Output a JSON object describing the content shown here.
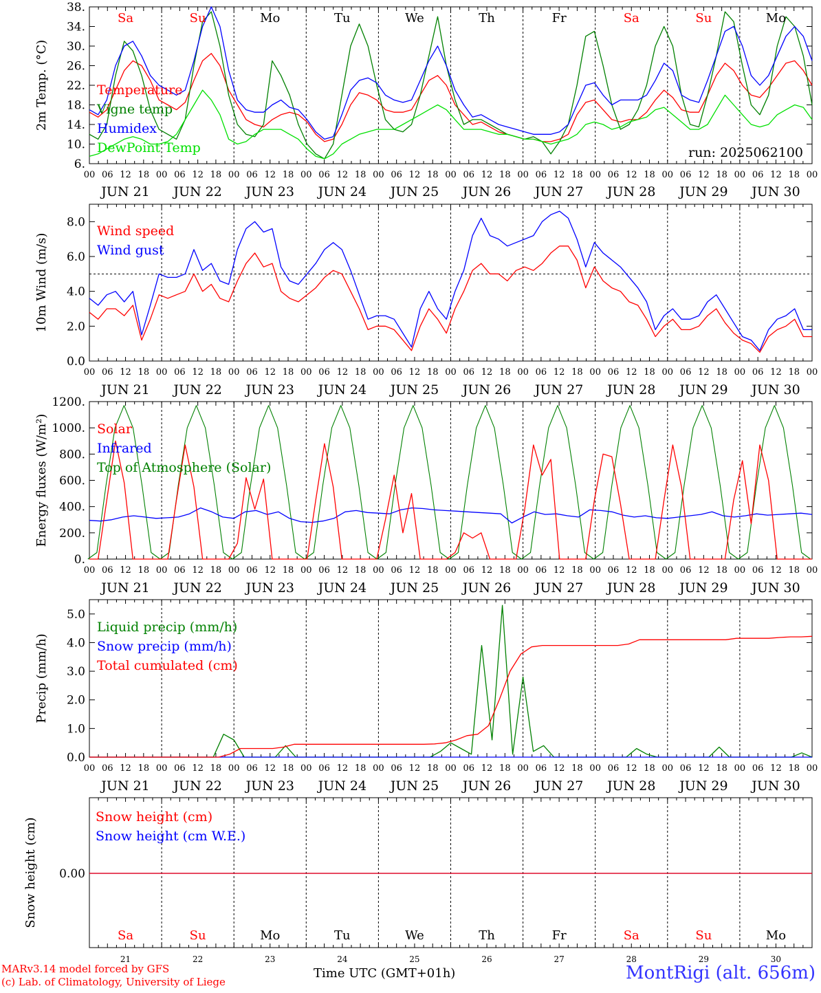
{
  "run_label": "run: 2025062100",
  "days": {
    "dow": [
      "Sa",
      "Su",
      "Mo",
      "Tu",
      "We",
      "Th",
      "Fr",
      "Sa",
      "Su",
      "Mo"
    ],
    "weekend": [
      true,
      true,
      false,
      false,
      false,
      false,
      false,
      true,
      true,
      false
    ],
    "dates": [
      "JUN 21",
      "JUN 22",
      "JUN 23",
      "JUN 24",
      "JUN 25",
      "JUN 26",
      "JUN 27",
      "JUN 28",
      "JUN 29",
      "JUN 30"
    ],
    "day_numbers": [
      "21",
      "22",
      "23",
      "24",
      "25",
      "26",
      "27",
      "28",
      "29",
      "30"
    ],
    "hour_labels": [
      "00",
      "06",
      "12",
      "18"
    ],
    "final_hour_label": "00"
  },
  "footer": {
    "model_line": "MARv3.14 model forced by GFS",
    "copyright_line": "(c) Lab. of Climatology, University of Liege",
    "x_axis_title": "Time UTC (GMT+01h)",
    "month": "JUN",
    "station": "MontRigi (alt. 656m)"
  },
  "colors": {
    "red": "#ff0000",
    "green": "#008000",
    "blue": "#0000ff",
    "lightgreen": "#00e000",
    "weekend": "#ff0000",
    "station": "#3333ff"
  },
  "chart_data": [
    {
      "id": "temperature",
      "type": "line",
      "ylabel": "2m Temp. (°C)",
      "ylim": [
        6,
        38
      ],
      "yticks": [
        "6.",
        "10.",
        "14.",
        "18.",
        "22.",
        "26.",
        "30.",
        "34.",
        "38."
      ],
      "time_step_hours": 3,
      "legend": [
        "Temperature",
        "Vigne temp",
        "Humidex",
        "DewPoint Temp"
      ],
      "series": [
        {
          "name": "Temperature",
          "color": "#ff0000",
          "values": [
            16.5,
            15.5,
            17,
            21,
            25,
            27,
            26,
            23,
            19,
            18,
            17,
            18.5,
            23,
            27,
            28.5,
            26,
            21,
            18,
            15,
            14,
            13.5,
            15,
            16,
            16.5,
            16,
            14.5,
            12,
            10.5,
            11,
            14,
            18,
            20.5,
            20,
            19,
            17,
            16.5,
            16.5,
            17,
            20,
            23,
            24,
            22,
            18,
            16,
            14,
            14.5,
            13.5,
            12.5,
            12,
            11.5,
            11,
            11,
            10.5,
            10.5,
            11,
            12,
            16,
            18.5,
            19,
            17,
            15,
            14.5,
            15,
            15,
            16.5,
            19,
            21,
            19.5,
            17,
            16.5,
            16.5,
            20,
            24,
            26.5,
            25,
            22,
            20,
            19.5,
            21.5,
            24,
            26.5,
            27,
            25,
            22
          ]
        },
        {
          "name": "Vigne temp",
          "color": "#008000",
          "values": [
            12,
            11,
            14,
            24,
            31,
            29,
            24,
            17,
            13,
            12,
            11,
            15,
            26,
            35,
            37,
            30,
            20,
            14,
            12,
            11.5,
            14,
            27,
            24,
            20,
            14,
            10,
            8,
            7,
            10,
            20,
            30,
            34.5,
            30,
            22,
            15,
            13,
            12.5,
            14,
            20,
            28,
            36,
            26,
            19,
            14,
            15,
            15,
            14,
            13,
            12,
            11.5,
            11,
            11.5,
            10.5,
            8,
            10.5,
            14,
            22,
            32,
            33,
            26,
            18,
            13,
            14,
            17,
            22,
            30,
            34,
            30,
            20,
            14,
            13.5,
            20,
            28,
            37,
            35,
            26,
            18,
            16,
            20,
            30,
            36,
            34,
            28,
            18
          ]
        },
        {
          "name": "Humidex",
          "color": "#0000ff",
          "values": [
            17,
            16,
            19,
            26,
            30,
            31,
            28,
            24,
            22,
            21,
            20,
            21,
            27,
            34,
            38,
            34,
            25,
            19,
            17,
            16.5,
            16.5,
            18,
            19,
            17.5,
            17,
            15,
            12.5,
            11,
            11.5,
            16,
            21,
            23,
            23.5,
            22.5,
            20,
            19,
            18.5,
            19,
            23,
            27,
            30,
            26,
            21,
            18,
            15.5,
            16,
            15,
            14,
            13.5,
            13,
            12.5,
            12,
            12,
            12,
            12.5,
            14,
            18,
            22,
            22.5,
            20,
            18,
            19,
            19,
            19,
            20,
            23,
            26.5,
            25,
            20,
            19,
            18.5,
            23,
            28,
            33,
            34,
            30,
            24,
            22,
            24,
            28,
            32,
            34,
            32,
            27
          ]
        },
        {
          "name": "DewPoint Temp",
          "color": "#00e000",
          "values": [
            7.5,
            8,
            9,
            10,
            11,
            11.5,
            11,
            10,
            10,
            10.5,
            12,
            15,
            18,
            21,
            19,
            16,
            11,
            10,
            10.5,
            12,
            13,
            13,
            13,
            12,
            11,
            9,
            7.5,
            7,
            8,
            10,
            11,
            12,
            12.5,
            13,
            13,
            13,
            14,
            15,
            16,
            17,
            18,
            17,
            15,
            13,
            13,
            13,
            12.5,
            12,
            12,
            11.5,
            11,
            11,
            10.5,
            10,
            10.5,
            11,
            12,
            14,
            14.5,
            14,
            13,
            13.5,
            14.5,
            15,
            15.5,
            17,
            17.5,
            16,
            14.5,
            13,
            13,
            14,
            17,
            20,
            18,
            16,
            14,
            13.5,
            14,
            16,
            17,
            18,
            17.5,
            15
          ]
        }
      ]
    },
    {
      "id": "wind",
      "type": "line",
      "ylabel": "10m Wind (m/s)",
      "ylim": [
        0,
        9
      ],
      "yticks": [
        "0.0",
        "2.0",
        "4.0",
        "6.0",
        "8.0"
      ],
      "reference_line": 5,
      "time_step_hours": 3,
      "legend": [
        "Wind speed",
        "Wind gust"
      ],
      "series": [
        {
          "name": "Wind speed",
          "color": "#ff0000",
          "values": [
            2.8,
            2.4,
            3.0,
            3.0,
            2.6,
            3.2,
            1.2,
            2.4,
            3.8,
            3.6,
            3.8,
            4.0,
            5.0,
            4.0,
            4.4,
            3.6,
            3.4,
            4.6,
            5.6,
            6.2,
            5.4,
            5.6,
            4.0,
            3.6,
            3.4,
            3.8,
            4.2,
            4.8,
            5.2,
            5.0,
            4.0,
            3.0,
            1.8,
            2.0,
            2.0,
            1.8,
            1.2,
            0.6,
            2.0,
            3.0,
            2.4,
            1.6,
            3.0,
            4.0,
            5.2,
            5.6,
            5.0,
            5.0,
            4.6,
            5.2,
            5.4,
            5.2,
            5.6,
            6.2,
            6.6,
            6.6,
            5.8,
            4.2,
            5.4,
            4.6,
            4.2,
            4.0,
            3.4,
            3.2,
            2.4,
            1.4,
            2.0,
            2.4,
            1.8,
            1.8,
            2.0,
            2.6,
            3.0,
            2.2,
            1.6,
            1.2,
            1.0,
            0.5,
            1.4,
            1.8,
            2.0,
            2.4,
            1.4,
            1.4
          ]
        },
        {
          "name": "Wind gust",
          "color": "#0000ff",
          "values": [
            3.6,
            3.2,
            3.8,
            4.0,
            3.4,
            4.0,
            1.5,
            3.2,
            5.0,
            4.8,
            4.8,
            5.0,
            6.4,
            5.2,
            5.6,
            4.6,
            4.4,
            6.4,
            7.6,
            8.0,
            7.4,
            7.6,
            5.4,
            4.6,
            4.4,
            5.0,
            5.6,
            6.4,
            6.8,
            6.4,
            5.2,
            3.8,
            2.4,
            2.6,
            2.6,
            2.4,
            1.6,
            0.8,
            3.0,
            4.0,
            3.0,
            2.4,
            4.0,
            5.2,
            7.2,
            8.2,
            7.2,
            7.0,
            6.6,
            6.8,
            7.0,
            7.2,
            8.0,
            8.4,
            8.6,
            8.2,
            7.0,
            5.4,
            6.8,
            6.2,
            5.8,
            5.4,
            4.8,
            4.2,
            3.4,
            1.8,
            2.6,
            3.0,
            2.4,
            2.4,
            2.6,
            3.4,
            3.8,
            3.0,
            2.2,
            1.4,
            1.2,
            0.6,
            1.8,
            2.4,
            2.6,
            3.0,
            1.8,
            1.8
          ]
        }
      ]
    },
    {
      "id": "energy",
      "type": "line",
      "ylabel": "Energy fluxes (W/m²)",
      "ylim": [
        0,
        1200
      ],
      "yticks": [
        "0.",
        "200.",
        "400.",
        "600.",
        "800.",
        "1000.",
        "1200."
      ],
      "time_step_hours": 3,
      "legend": [
        "Solar",
        "Infrared",
        "Top of Atmosphere (Solar)"
      ],
      "series": [
        {
          "name": "Solar",
          "color": "#ff0000",
          "values": [
            0,
            0,
            450,
            900,
            580,
            0,
            0,
            0,
            0,
            0,
            450,
            870,
            550,
            0,
            0,
            0,
            0,
            120,
            620,
            380,
            610,
            0,
            0,
            0,
            0,
            0,
            450,
            880,
            550,
            0,
            0,
            0,
            0,
            0,
            300,
            640,
            200,
            500,
            0,
            0,
            0,
            0,
            50,
            200,
            160,
            200,
            0,
            0,
            0,
            0,
            380,
            870,
            640,
            760,
            0,
            0,
            0,
            0,
            450,
            800,
            780,
            420,
            0,
            0,
            0,
            0,
            450,
            870,
            550,
            0,
            0,
            0,
            0,
            0,
            450,
            750,
            270,
            870,
            600,
            0,
            0,
            0,
            0,
            0
          ]
        },
        {
          "name": "Infrared",
          "color": "#0000ff",
          "values": [
            295,
            290,
            300,
            320,
            330,
            320,
            310,
            315,
            320,
            345,
            390,
            360,
            320,
            310,
            360,
            370,
            340,
            360,
            310,
            285,
            280,
            290,
            310,
            360,
            370,
            355,
            350,
            345,
            375,
            390,
            385,
            375,
            370,
            365,
            360,
            355,
            350,
            345,
            275,
            320,
            360,
            340,
            345,
            330,
            320,
            375,
            370,
            360,
            335,
            320,
            330,
            315,
            310,
            320,
            330,
            340,
            360,
            330,
            320,
            330,
            345,
            335,
            340,
            345,
            350,
            340
          ]
        },
        {
          "name": "Top of Atmosphere (Solar)",
          "color": "#008000",
          "values": [
            0,
            50,
            560,
            1000,
            1170,
            1000,
            560,
            50,
            0
          ]
        }
      ]
    },
    {
      "id": "precip",
      "type": "line",
      "ylabel": "Precip (mm/h)",
      "ylim": [
        0,
        5.5
      ],
      "yticks": [
        "0.0",
        "1.0",
        "2.0",
        "3.0",
        "4.0",
        "5.0"
      ],
      "time_step_hours": 3,
      "legend": [
        "Liquid precip (mm/h)",
        "Snow precip (mm/h)",
        "Total cumulated (cm)"
      ],
      "series": [
        {
          "name": "Liquid precip (mm/h)",
          "color": "#008000",
          "values": [
            0,
            0,
            0,
            0,
            0,
            0,
            0,
            0,
            0,
            0,
            0,
            0,
            0,
            0.8,
            0.6,
            0,
            0,
            0,
            0,
            0.4,
            0,
            0,
            0,
            0,
            0,
            0,
            0,
            0,
            0,
            0,
            0,
            0,
            0,
            0,
            0.2,
            0.5,
            0.3,
            0.1,
            3.9,
            0.6,
            5.3,
            0.1,
            2.8,
            0.2,
            0.4,
            0,
            0,
            0,
            0,
            0,
            0,
            0,
            0,
            0.3,
            0.1,
            0,
            0,
            0,
            0,
            0,
            0,
            0.35,
            0,
            0,
            0,
            0,
            0,
            0,
            0,
            0.15,
            0
          ]
        },
        {
          "name": "Snow precip (mm/h)",
          "color": "#0000ff",
          "values": [
            0,
            0
          ]
        },
        {
          "name": "Total cumulated (cm)",
          "color": "#ff0000",
          "values": [
            0,
            0,
            0,
            0,
            0,
            0,
            0,
            0,
            0,
            0,
            0,
            0,
            0,
            0.1,
            0.3,
            0.3,
            0.3,
            0.3,
            0.35,
            0.45,
            0.45,
            0.45,
            0.45,
            0.45,
            0.45,
            0.45,
            0.45,
            0.45,
            0.45,
            0.45,
            0.45,
            0.45,
            0.46,
            0.5,
            0.6,
            0.75,
            0.8,
            1.1,
            2.0,
            3.0,
            3.6,
            3.85,
            3.9,
            3.9,
            3.9,
            3.9,
            3.9,
            3.9,
            3.9,
            3.9,
            3.95,
            4.1,
            4.1,
            4.1,
            4.1,
            4.1,
            4.1,
            4.1,
            4.1,
            4.1,
            4.15,
            4.15,
            4.15,
            4.15,
            4.18,
            4.2,
            4.2,
            4.22
          ]
        }
      ]
    },
    {
      "id": "snow",
      "type": "line",
      "ylabel": "Snow height (cm)",
      "yticks": [
        "0.00"
      ],
      "legend": [
        "Snow height (cm)",
        "Snow height (cm W.E.)"
      ],
      "series": [
        {
          "name": "Snow height (cm)",
          "color": "#ff0000",
          "values": [
            0,
            0
          ]
        },
        {
          "name": "Snow height (cm W.E.)",
          "color": "#0000ff",
          "values": [
            0,
            0
          ]
        }
      ]
    }
  ]
}
